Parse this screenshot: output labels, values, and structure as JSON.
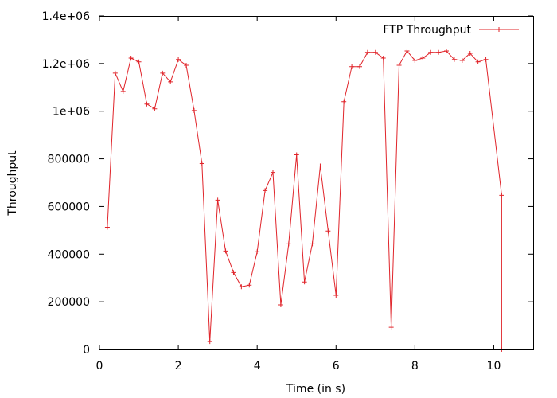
{
  "chart_data": {
    "type": "line",
    "title": "",
    "xlabel": "Time (in s)",
    "ylabel": "Throughput",
    "xlim": [
      0,
      11
    ],
    "ylim": [
      0,
      1400000
    ],
    "x_ticks": [
      0,
      2,
      4,
      6,
      8,
      10
    ],
    "x_tick_labels": [
      "0",
      "2",
      "4",
      "6",
      "8",
      "10"
    ],
    "y_ticks": [
      0,
      200000,
      400000,
      600000,
      800000,
      1000000,
      1200000,
      1400000
    ],
    "y_tick_labels": [
      "0",
      "200000",
      "400000",
      "600000",
      "800000",
      "1e+06",
      "1.2e+06",
      "1.4e+06"
    ],
    "grid": false,
    "legend": {
      "position": "top-right",
      "entries": [
        "FTP Throughput"
      ]
    },
    "series": [
      {
        "name": "FTP Throughput",
        "color": "#e0242a",
        "marker": "plus",
        "x": [
          0.2,
          0.4,
          0.6,
          0.8,
          1.0,
          1.2,
          1.4,
          1.6,
          1.8,
          2.0,
          2.2,
          2.4,
          2.6,
          2.8,
          3.0,
          3.2,
          3.4,
          3.6,
          3.8,
          4.0,
          4.2,
          4.4,
          4.6,
          4.8,
          5.0,
          5.2,
          5.4,
          5.6,
          5.8,
          6.0,
          6.2,
          6.4,
          6.6,
          6.8,
          7.0,
          7.2,
          7.4,
          7.6,
          7.8,
          8.0,
          8.2,
          8.4,
          8.6,
          8.8,
          9.0,
          9.2,
          9.4,
          9.6,
          9.8,
          10.2,
          10.2
        ],
        "y": [
          513000,
          1160000,
          1083000,
          1223000,
          1207000,
          1030000,
          1010000,
          1160000,
          1123000,
          1217000,
          1193000,
          1003000,
          780000,
          33000,
          627000,
          413000,
          323000,
          263000,
          270000,
          410000,
          667000,
          743000,
          187000,
          443000,
          817000,
          283000,
          443000,
          770000,
          497000,
          227000,
          1040000,
          1187000,
          1187000,
          1247000,
          1247000,
          1223000,
          93000,
          1193000,
          1253000,
          1213000,
          1223000,
          1247000,
          1247000,
          1253000,
          1217000,
          1213000,
          1243000,
          1207000,
          1217000,
          647000,
          0
        ]
      }
    ]
  }
}
